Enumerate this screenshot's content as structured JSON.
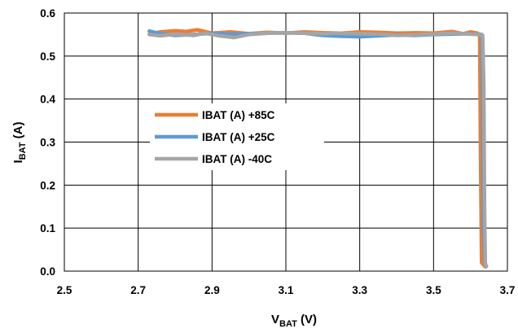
{
  "chart_data": {
    "type": "line",
    "xlabel": {
      "main": "V",
      "sub": "BAT",
      "unit": " (V)"
    },
    "ylabel": {
      "main": "I",
      "sub": "BAT",
      "unit": " (A)"
    },
    "xlim": [
      2.5,
      3.7
    ],
    "ylim": [
      0.0,
      0.6
    ],
    "xticks": [
      "2.5",
      "2.7",
      "2.9",
      "3.1",
      "3.3",
      "3.5",
      "3.7"
    ],
    "yticks": [
      "0.0",
      "0.1",
      "0.2",
      "0.3",
      "0.4",
      "0.5",
      "0.6"
    ],
    "xtick_values": [
      2.5,
      2.7,
      2.9,
      3.1,
      3.3,
      3.5,
      3.7
    ],
    "ytick_values": [
      0.0,
      0.1,
      0.2,
      0.3,
      0.4,
      0.5,
      0.6
    ],
    "grid": true,
    "legend": "center-left",
    "series": [
      {
        "name": "IBAT (A) +85C",
        "color": "#ED7D31",
        "x": [
          2.73,
          2.76,
          2.8,
          2.83,
          2.86,
          2.9,
          2.95,
          3.0,
          3.05,
          3.1,
          3.15,
          3.2,
          3.25,
          3.3,
          3.35,
          3.4,
          3.45,
          3.5,
          3.55,
          3.58,
          3.6,
          3.62,
          3.625,
          3.627,
          3.63,
          3.635,
          3.64,
          3.643
        ],
        "y": [
          0.551,
          0.556,
          0.559,
          0.557,
          0.561,
          0.553,
          0.556,
          0.552,
          0.555,
          0.553,
          0.556,
          0.554,
          0.553,
          0.556,
          0.555,
          0.553,
          0.554,
          0.553,
          0.557,
          0.552,
          0.556,
          0.553,
          0.545,
          0.3,
          0.02,
          0.015,
          0.01,
          0.012
        ]
      },
      {
        "name": "IBAT (A) +25C",
        "color": "#5B9BD5",
        "x": [
          2.73,
          2.76,
          2.8,
          2.85,
          2.9,
          2.95,
          3.0,
          3.05,
          3.1,
          3.15,
          3.2,
          3.25,
          3.3,
          3.35,
          3.4,
          3.45,
          3.5,
          3.55,
          3.6,
          3.62,
          3.63,
          3.633,
          3.635,
          3.638,
          3.64
        ],
        "y": [
          0.558,
          0.552,
          0.548,
          0.55,
          0.553,
          0.551,
          0.552,
          0.553,
          0.554,
          0.553,
          0.548,
          0.546,
          0.545,
          0.547,
          0.549,
          0.548,
          0.55,
          0.551,
          0.552,
          0.551,
          0.55,
          0.4,
          0.1,
          0.02,
          0.015
        ]
      },
      {
        "name": "IBAT (A) -40C",
        "color": "#A5A5A5",
        "x": [
          2.73,
          2.76,
          2.8,
          2.85,
          2.88,
          2.92,
          2.96,
          3.0,
          3.05,
          3.1,
          3.15,
          3.2,
          3.25,
          3.3,
          3.35,
          3.4,
          3.45,
          3.5,
          3.55,
          3.6,
          3.625,
          3.633,
          3.636,
          3.638,
          3.64,
          3.642
        ],
        "y": [
          0.55,
          0.547,
          0.551,
          0.548,
          0.553,
          0.547,
          0.543,
          0.55,
          0.553,
          0.554,
          0.553,
          0.552,
          0.553,
          0.552,
          0.551,
          0.548,
          0.549,
          0.551,
          0.553,
          0.551,
          0.55,
          0.548,
          0.43,
          0.15,
          0.02,
          0.01
        ]
      }
    ]
  }
}
